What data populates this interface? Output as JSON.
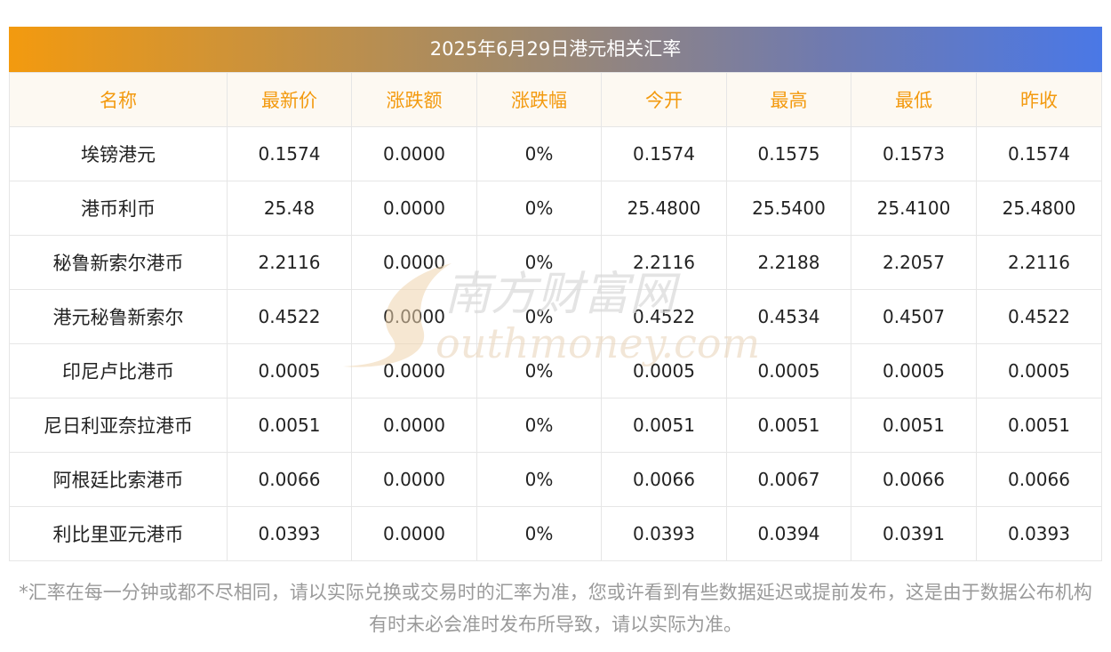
{
  "header": {
    "title": "2025年6月29日港元相关汇率"
  },
  "table": {
    "columns": [
      "名称",
      "最新价",
      "涨跌额",
      "涨跌幅",
      "今开",
      "最高",
      "最低",
      "昨收"
    ],
    "rows": [
      [
        "埃镑港元",
        "0.1574",
        "0.0000",
        "0%",
        "0.1574",
        "0.1575",
        "0.1573",
        "0.1574"
      ],
      [
        "港币利币",
        "25.48",
        "0.0000",
        "0%",
        "25.4800",
        "25.5400",
        "25.4100",
        "25.4800"
      ],
      [
        "秘鲁新索尔港币",
        "2.2116",
        "0.0000",
        "0%",
        "2.2116",
        "2.2188",
        "2.2057",
        "2.2116"
      ],
      [
        "港元秘鲁新索尔",
        "0.4522",
        "0.0000",
        "0%",
        "0.4522",
        "0.4534",
        "0.4507",
        "0.4522"
      ],
      [
        "印尼卢比港币",
        "0.0005",
        "0.0000",
        "0%",
        "0.0005",
        "0.0005",
        "0.0005",
        "0.0005"
      ],
      [
        "尼日利亚奈拉港币",
        "0.0051",
        "0.0000",
        "0%",
        "0.0051",
        "0.0051",
        "0.0051",
        "0.0051"
      ],
      [
        "阿根廷比索港币",
        "0.0066",
        "0.0000",
        "0%",
        "0.0066",
        "0.0067",
        "0.0066",
        "0.0066"
      ],
      [
        "利比里亚元港币",
        "0.0393",
        "0.0000",
        "0%",
        "0.0393",
        "0.0394",
        "0.0391",
        "0.0393"
      ]
    ]
  },
  "watermark": {
    "cn_text": "南方财富网",
    "en_text": "outhmoney.com",
    "color": "#e8c9a0"
  },
  "footnote": {
    "text": "*汇率在每一分钟或都不尽相同，请以实际兑换或交易时的汇率为准，您或许看到有些数据延迟或提前发布，这是由于数据公布机构有时未必会准时发布所导致，请以实际为准。"
  },
  "colors": {
    "header_text": "#f39a0f",
    "gradient_start": "#f39a0f",
    "gradient_end": "#4a78e6"
  }
}
